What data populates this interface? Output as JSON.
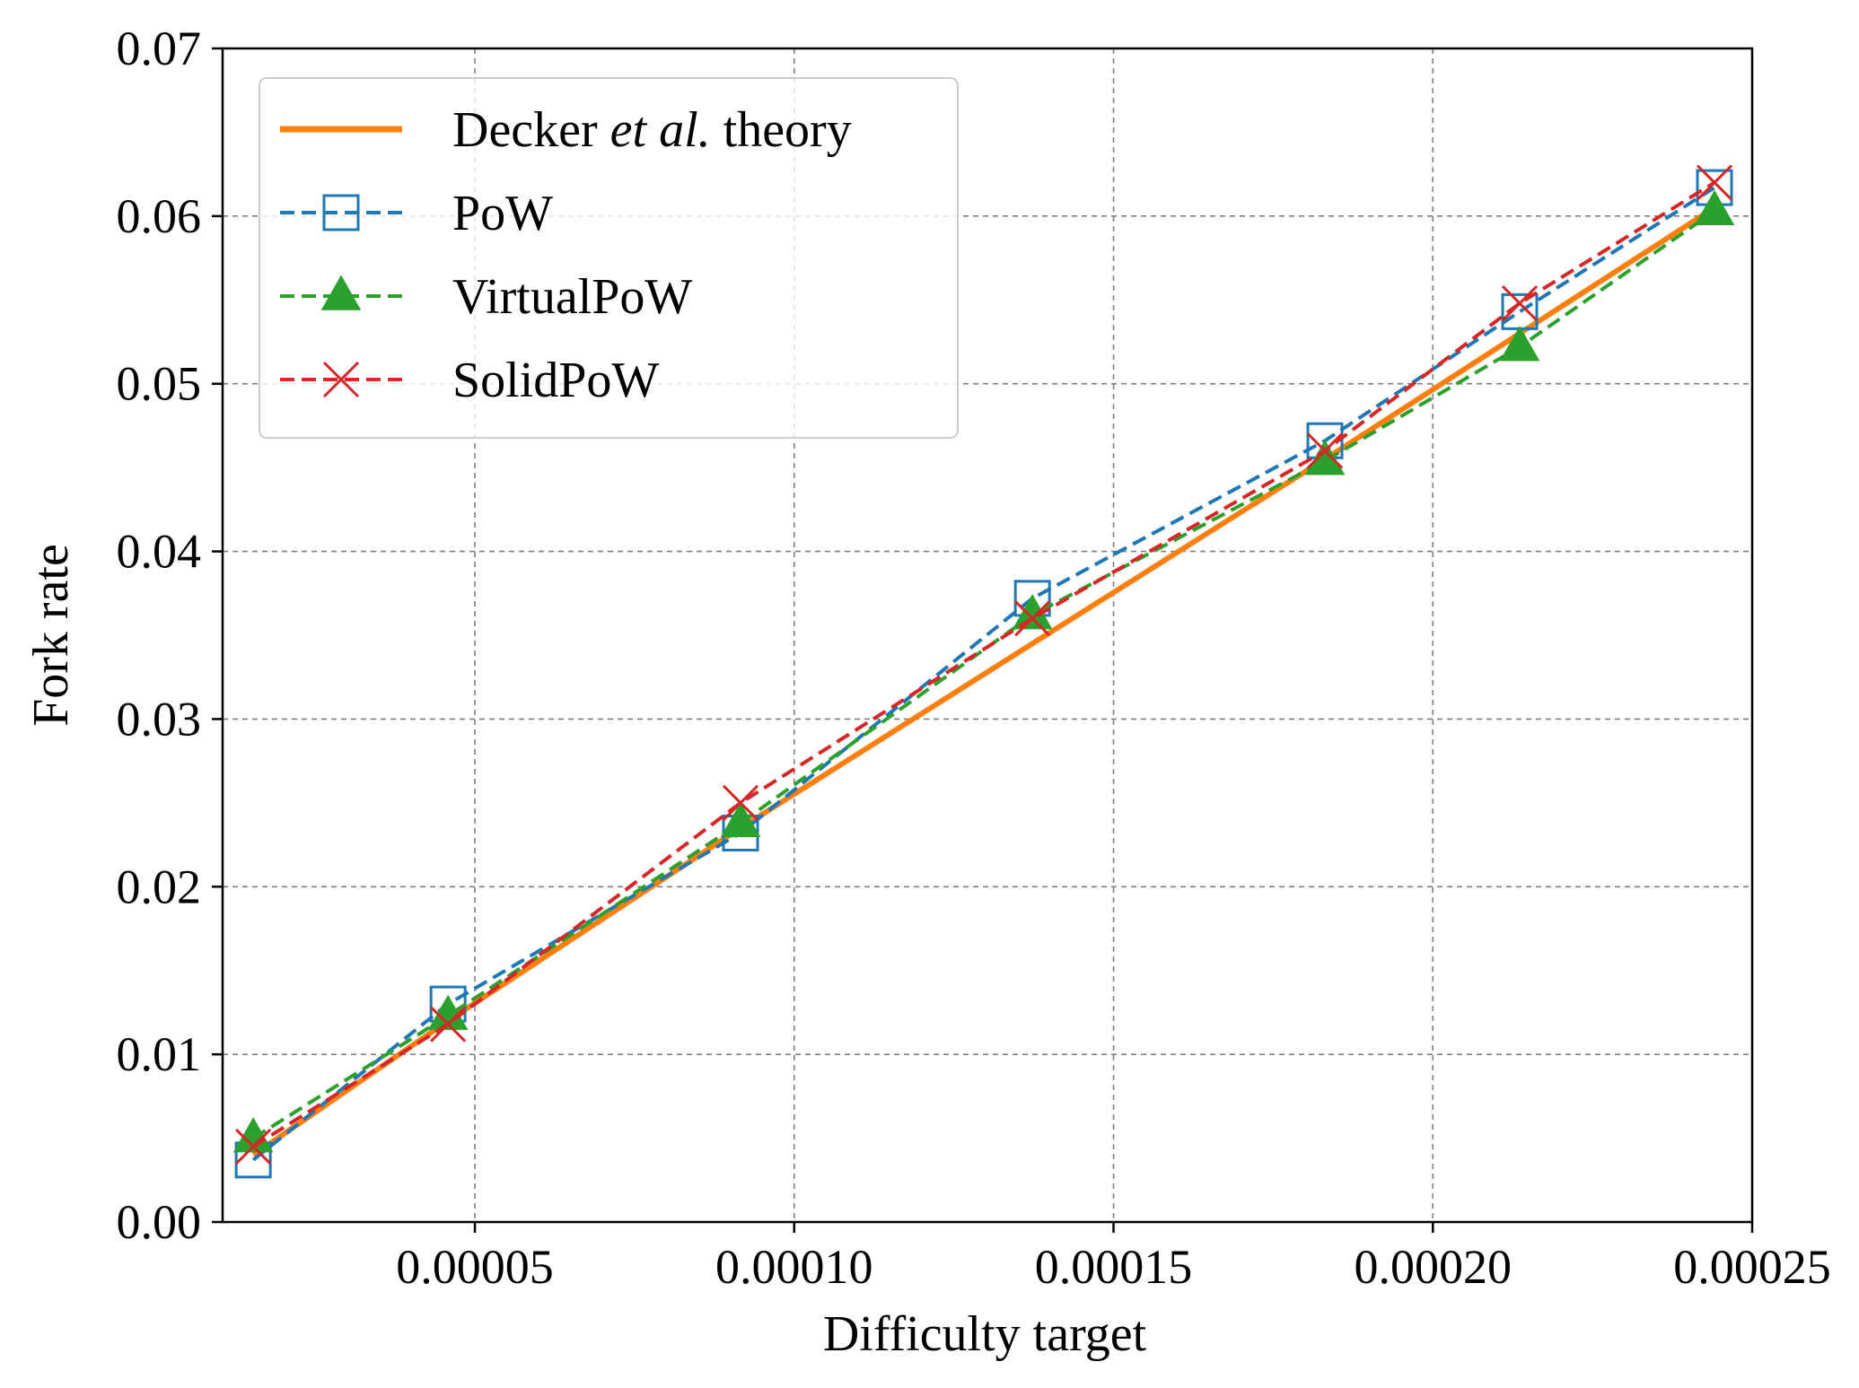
{
  "chart_data": {
    "type": "line",
    "xlabel": "Difficulty target",
    "ylabel": "Fork rate",
    "xlim": [
      1.05e-05,
      0.00025
    ],
    "ylim": [
      0,
      0.07
    ],
    "x_ticks": [
      5e-05,
      0.0001,
      0.00015,
      0.0002,
      0.00025
    ],
    "x_tick_labels": [
      "0.00005",
      "0.00010",
      "0.00015",
      "0.00020",
      "0.00025"
    ],
    "y_ticks": [
      0,
      0.01,
      0.02,
      0.03,
      0.04,
      0.05,
      0.06,
      0.07
    ],
    "y_tick_labels": [
      "0.00",
      "0.01",
      "0.02",
      "0.03",
      "0.04",
      "0.05",
      "0.06",
      "0.07"
    ],
    "grid": true,
    "legend_position": "top-left",
    "x": [
      1.53e-05,
      4.58e-05,
      9.16e-05,
      0.0001373,
      0.0001831,
      0.0002136,
      0.0002441
    ],
    "series": [
      {
        "name": "Decker et al. theory",
        "legend_parts": [
          "Decker ",
          "et al.",
          " theory"
        ],
        "style": "solid",
        "marker": "none",
        "color": "#ff7f0e",
        "values": [
          0.004,
          0.012,
          0.0235,
          0.0345,
          0.0455,
          0.053,
          0.0605
        ]
      },
      {
        "name": "PoW",
        "style": "dashed",
        "marker": "square",
        "color": "#1f77b4",
        "values": [
          0.0037,
          0.013,
          0.0232,
          0.0372,
          0.0466,
          0.0543,
          0.0617
        ]
      },
      {
        "name": "VirtualPoW",
        "style": "dashed",
        "marker": "triangle",
        "color": "#2ca02c",
        "values": [
          0.005,
          0.0123,
          0.0238,
          0.0362,
          0.0454,
          0.0522,
          0.0603
        ]
      },
      {
        "name": "SolidPoW",
        "style": "dashed",
        "marker": "x",
        "color": "#d62728",
        "values": [
          0.0045,
          0.0118,
          0.025,
          0.036,
          0.046,
          0.0548,
          0.062
        ]
      }
    ]
  }
}
